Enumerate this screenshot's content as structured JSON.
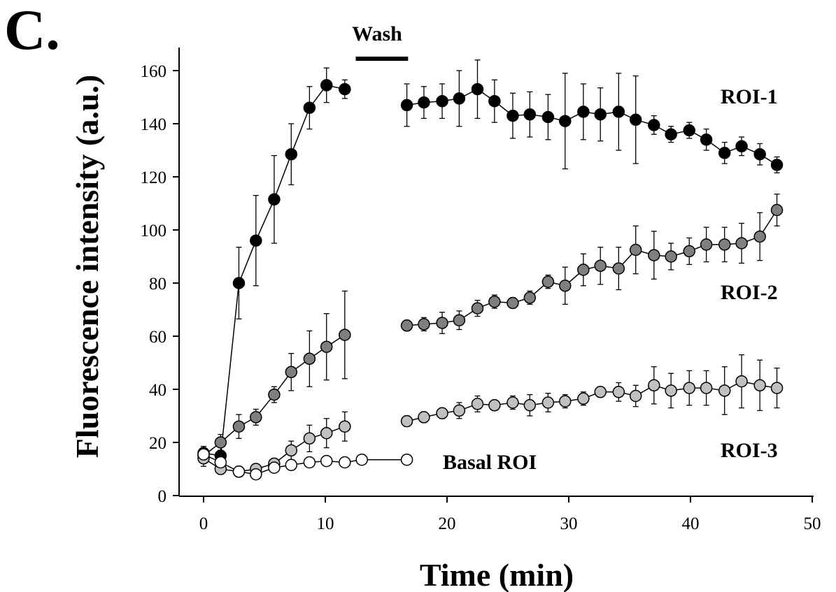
{
  "panel_label": "C.",
  "chart_data": {
    "type": "scatter",
    "title": "",
    "xlabel": "Time (min)",
    "ylabel": "Fluorescence intensity (a.u.)",
    "xlim": [
      -2,
      50
    ],
    "ylim": [
      0,
      168
    ],
    "xticks": [
      0,
      10,
      20,
      30,
      40,
      50
    ],
    "yticks": [
      0,
      20,
      40,
      60,
      80,
      100,
      120,
      140,
      160
    ],
    "grid": false,
    "legend": "none",
    "annotations": [
      {
        "text": "Wash",
        "x_start": 12.5,
        "x_end": 16.8
      }
    ],
    "series": [
      {
        "name": "ROI-1",
        "fill": "#000000",
        "segments": [
          [
            {
              "x": 0.0,
              "y": 16.0,
              "err": 2.5
            },
            {
              "x": 1.4,
              "y": 15.0,
              "err": 2.0
            },
            {
              "x": 2.9,
              "y": 80.0,
              "err": 13.5
            },
            {
              "x": 4.3,
              "y": 96.0,
              "err": 17.0
            },
            {
              "x": 5.8,
              "y": 111.5,
              "err": 16.5
            },
            {
              "x": 7.2,
              "y": 128.5,
              "err": 11.5
            },
            {
              "x": 8.7,
              "y": 146.0,
              "err": 8.0
            },
            {
              "x": 10.1,
              "y": 154.5,
              "err": 6.5
            },
            {
              "x": 11.6,
              "y": 153.0,
              "err": 3.5
            }
          ],
          [
            {
              "x": 16.7,
              "y": 147.0,
              "err": 8.0
            },
            {
              "x": 18.1,
              "y": 148.0,
              "err": 6.0
            },
            {
              "x": 19.6,
              "y": 148.5,
              "err": 6.5
            },
            {
              "x": 21.0,
              "y": 149.5,
              "err": 10.5
            },
            {
              "x": 22.5,
              "y": 153.0,
              "err": 11.0
            },
            {
              "x": 23.9,
              "y": 148.5,
              "err": 8.0
            },
            {
              "x": 25.4,
              "y": 143.0,
              "err": 8.5
            },
            {
              "x": 26.8,
              "y": 143.5,
              "err": 8.5
            },
            {
              "x": 28.3,
              "y": 142.5,
              "err": 8.5
            },
            {
              "x": 29.7,
              "y": 141.0,
              "err": 18.0
            },
            {
              "x": 31.2,
              "y": 144.5,
              "err": 10.5
            },
            {
              "x": 32.6,
              "y": 143.5,
              "err": 10.0
            },
            {
              "x": 34.1,
              "y": 144.5,
              "err": 14.5
            },
            {
              "x": 35.5,
              "y": 141.5,
              "err": 16.5
            },
            {
              "x": 37.0,
              "y": 139.5,
              "err": 3.5
            },
            {
              "x": 38.4,
              "y": 136.0,
              "err": 3.0
            },
            {
              "x": 39.9,
              "y": 137.5,
              "err": 3.0
            },
            {
              "x": 41.3,
              "y": 134.0,
              "err": 4.0
            },
            {
              "x": 42.8,
              "y": 129.0,
              "err": 4.0
            },
            {
              "x": 44.2,
              "y": 131.5,
              "err": 3.5
            },
            {
              "x": 45.7,
              "y": 128.5,
              "err": 4.0
            },
            {
              "x": 47.1,
              "y": 124.5,
              "err": 3.0
            }
          ]
        ]
      },
      {
        "name": "ROI-2",
        "fill": "#7f7f7f",
        "segments": [
          [
            {
              "x": 0.0,
              "y": 15.0,
              "err": 3.0
            },
            {
              "x": 1.4,
              "y": 20.0,
              "err": 3.0
            },
            {
              "x": 2.9,
              "y": 26.0,
              "err": 4.5
            },
            {
              "x": 4.3,
              "y": 29.5,
              "err": 3.0
            },
            {
              "x": 5.8,
              "y": 38.0,
              "err": 3.0
            },
            {
              "x": 7.2,
              "y": 46.5,
              "err": 7.0
            },
            {
              "x": 8.7,
              "y": 51.5,
              "err": 10.5
            },
            {
              "x": 10.1,
              "y": 56.0,
              "err": 12.5
            },
            {
              "x": 11.6,
              "y": 60.5,
              "err": 16.5
            }
          ],
          [
            {
              "x": 16.7,
              "y": 64.0,
              "err": 2.0
            },
            {
              "x": 18.1,
              "y": 64.5,
              "err": 2.5
            },
            {
              "x": 19.6,
              "y": 65.0,
              "err": 4.0
            },
            {
              "x": 21.0,
              "y": 66.0,
              "err": 3.5
            },
            {
              "x": 22.5,
              "y": 70.5,
              "err": 3.0
            },
            {
              "x": 23.9,
              "y": 73.0,
              "err": 2.5
            },
            {
              "x": 25.4,
              "y": 72.5,
              "err": 2.0
            },
            {
              "x": 26.8,
              "y": 74.5,
              "err": 2.5
            },
            {
              "x": 28.3,
              "y": 80.5,
              "err": 2.5
            },
            {
              "x": 29.7,
              "y": 79.0,
              "err": 7.0
            },
            {
              "x": 31.2,
              "y": 85.0,
              "err": 6.0
            },
            {
              "x": 32.6,
              "y": 86.5,
              "err": 7.0
            },
            {
              "x": 34.1,
              "y": 85.5,
              "err": 8.0
            },
            {
              "x": 35.5,
              "y": 92.5,
              "err": 9.0
            },
            {
              "x": 37.0,
              "y": 90.5,
              "err": 9.0
            },
            {
              "x": 38.4,
              "y": 90.0,
              "err": 5.0
            },
            {
              "x": 39.9,
              "y": 92.0,
              "err": 5.0
            },
            {
              "x": 41.3,
              "y": 94.5,
              "err": 6.5
            },
            {
              "x": 42.8,
              "y": 94.5,
              "err": 6.5
            },
            {
              "x": 44.2,
              "y": 95.0,
              "err": 7.5
            },
            {
              "x": 45.7,
              "y": 97.5,
              "err": 9.0
            },
            {
              "x": 47.1,
              "y": 107.5,
              "err": 6.0
            }
          ]
        ]
      },
      {
        "name": "ROI-3",
        "fill": "#c0c0c0",
        "segments": [
          [
            {
              "x": 0.0,
              "y": 14.0,
              "err": 3.0
            },
            {
              "x": 1.4,
              "y": 10.0,
              "err": 2.0
            },
            {
              "x": 2.9,
              "y": 9.0,
              "err": 2.0
            },
            {
              "x": 4.3,
              "y": 10.0,
              "err": 2.0
            },
            {
              "x": 5.8,
              "y": 12.0,
              "err": 2.0
            },
            {
              "x": 7.2,
              "y": 17.0,
              "err": 3.5
            },
            {
              "x": 8.7,
              "y": 21.5,
              "err": 5.0
            },
            {
              "x": 10.1,
              "y": 23.5,
              "err": 5.5
            },
            {
              "x": 11.6,
              "y": 26.0,
              "err": 5.5
            }
          ],
          [
            {
              "x": 16.7,
              "y": 28.0,
              "err": 2.0
            },
            {
              "x": 18.1,
              "y": 29.5,
              "err": 2.0
            },
            {
              "x": 19.6,
              "y": 31.0,
              "err": 2.0
            },
            {
              "x": 21.0,
              "y": 32.0,
              "err": 3.0
            },
            {
              "x": 22.5,
              "y": 34.5,
              "err": 3.0
            },
            {
              "x": 23.9,
              "y": 34.0,
              "err": 2.0
            },
            {
              "x": 25.4,
              "y": 35.0,
              "err": 2.5
            },
            {
              "x": 26.8,
              "y": 34.0,
              "err": 4.0
            },
            {
              "x": 28.3,
              "y": 35.0,
              "err": 3.5
            },
            {
              "x": 29.7,
              "y": 35.5,
              "err": 2.5
            },
            {
              "x": 31.2,
              "y": 36.5,
              "err": 2.5
            },
            {
              "x": 32.6,
              "y": 39.0,
              "err": 2.0
            },
            {
              "x": 34.1,
              "y": 39.0,
              "err": 3.5
            },
            {
              "x": 35.5,
              "y": 37.5,
              "err": 4.0
            },
            {
              "x": 37.0,
              "y": 41.5,
              "err": 7.0
            },
            {
              "x": 38.4,
              "y": 39.5,
              "err": 6.5
            },
            {
              "x": 39.9,
              "y": 40.5,
              "err": 6.5
            },
            {
              "x": 41.3,
              "y": 40.5,
              "err": 6.5
            },
            {
              "x": 42.8,
              "y": 39.5,
              "err": 9.0
            },
            {
              "x": 44.2,
              "y": 43.0,
              "err": 10.0
            },
            {
              "x": 45.7,
              "y": 41.5,
              "err": 9.5
            },
            {
              "x": 47.1,
              "y": 40.5,
              "err": 7.5
            }
          ]
        ]
      },
      {
        "name": "Basal ROI",
        "fill": "#ffffff",
        "segments": [
          [
            {
              "x": 0.0,
              "y": 15.5,
              "err": 2.0
            },
            {
              "x": 1.4,
              "y": 12.5,
              "err": 1.5
            },
            {
              "x": 2.9,
              "y": 9.0,
              "err": 1.5
            },
            {
              "x": 4.3,
              "y": 8.0,
              "err": 1.5
            },
            {
              "x": 5.8,
              "y": 10.5,
              "err": 1.5
            },
            {
              "x": 7.2,
              "y": 11.5,
              "err": 1.5
            },
            {
              "x": 8.7,
              "y": 12.5,
              "err": 1.0
            },
            {
              "x": 10.1,
              "y": 13.0,
              "err": 1.0
            },
            {
              "x": 11.6,
              "y": 12.5,
              "err": 1.0
            },
            {
              "x": 13.0,
              "y": 13.5,
              "err": 1.0
            },
            {
              "x": 16.7,
              "y": 13.5,
              "err": 1.0
            }
          ]
        ]
      }
    ]
  }
}
